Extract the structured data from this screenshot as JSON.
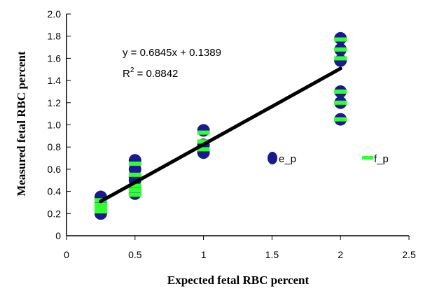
{
  "chart_data": {
    "type": "scatter",
    "xlabel": "Expected fetal RBC percent",
    "ylabel": "Measured fetal RBC percent",
    "xlim": [
      0,
      2.5
    ],
    "ylim": [
      0,
      2.0
    ],
    "x_ticks": [
      "0",
      "0.5",
      "1",
      "1.5",
      "2",
      "2.5"
    ],
    "y_ticks": [
      "0",
      "0.2",
      "0.4",
      "0.6",
      "0.8",
      "1.0",
      "1.2",
      "1.4",
      "1.6",
      "1.8",
      "2.0"
    ],
    "grid": false,
    "legend_position": "right",
    "series": [
      {
        "name": "e_p",
        "marker": "ellipse",
        "color": "#1a1a8c",
        "points": [
          [
            0.25,
            0.2
          ],
          [
            0.25,
            0.23
          ],
          [
            0.25,
            0.27
          ],
          [
            0.25,
            0.3
          ],
          [
            0.25,
            0.35
          ],
          [
            0.5,
            0.38
          ],
          [
            0.5,
            0.42
          ],
          [
            0.5,
            0.5
          ],
          [
            0.5,
            0.53
          ],
          [
            0.5,
            0.6
          ],
          [
            0.5,
            0.68
          ],
          [
            1.0,
            0.75
          ],
          [
            1.0,
            0.82
          ],
          [
            1.0,
            0.95
          ],
          [
            2.0,
            1.05
          ],
          [
            2.0,
            1.2
          ],
          [
            2.0,
            1.3
          ],
          [
            2.0,
            1.58
          ],
          [
            2.0,
            1.68
          ],
          [
            2.0,
            1.78
          ]
        ]
      },
      {
        "name": "f_p",
        "marker": "dash",
        "color": "#33ff33",
        "points": [
          [
            0.25,
            0.22
          ],
          [
            0.25,
            0.25
          ],
          [
            0.25,
            0.28
          ],
          [
            0.25,
            0.32
          ],
          [
            0.5,
            0.37
          ],
          [
            0.5,
            0.41
          ],
          [
            0.5,
            0.45
          ],
          [
            0.5,
            0.55
          ],
          [
            0.5,
            0.65
          ],
          [
            1.0,
            0.78
          ],
          [
            1.0,
            0.85
          ],
          [
            1.0,
            0.93
          ],
          [
            2.0,
            1.05
          ],
          [
            2.0,
            1.2
          ],
          [
            2.0,
            1.3
          ],
          [
            2.0,
            1.6
          ],
          [
            2.0,
            1.68
          ],
          [
            2.0,
            1.77
          ]
        ]
      }
    ],
    "trendline": {
      "x": [
        0.25,
        2.0
      ],
      "slope": 0.6845,
      "intercept": 0.1389,
      "color": "#000000",
      "equation_text": "y = 0.6845x + 0.1389",
      "r2_prefix": "R",
      "r2_sup": "2",
      "r2_value": " = 0.8842"
    }
  }
}
